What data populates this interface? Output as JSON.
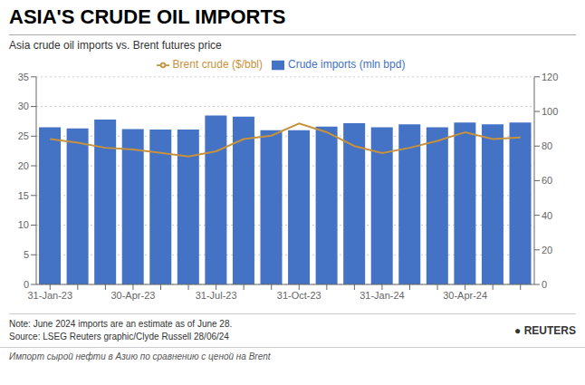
{
  "chart_data": {
    "type": "bar",
    "title": "ASIA'S CRUDE OIL IMPORTS",
    "subtitle": "Asia crude oil imports vs. Brent futures price",
    "annotations": [
      "Note: June 2024 imports are an estimate as of June 28.",
      "Source: LSEG    Reuters graphic/Clyde Russell 28/06/24",
      "● REUTERS",
      "Импорт сырой нефти в Азию по сравнению с ценой на Brent"
    ],
    "categories": [
      "31-Jan-23",
      null,
      null,
      "30-Apr-23",
      null,
      null,
      "31-Jul-23",
      null,
      null,
      "31-Oct-23",
      null,
      null,
      "31-Jan-24",
      null,
      null,
      "30-Apr-24",
      null,
      null
    ],
    "series": [
      {
        "name": "Crude imports (mln bpd)",
        "type": "bar",
        "color": "#4472C4",
        "values": [
          26.5,
          26.3,
          27.8,
          26.2,
          26.1,
          26.1,
          28.5,
          28.3,
          26.0,
          26.0,
          26.6,
          27.2,
          26.5,
          27.0,
          26.5,
          27.3,
          27.0,
          27.3
        ]
      },
      {
        "name": "Brent crude ($/bbl)",
        "type": "line",
        "axis": "y2",
        "color": "#C8923C",
        "values": [
          84,
          82,
          79,
          78,
          76,
          74,
          77,
          84,
          86,
          93,
          88,
          80,
          76,
          79,
          83,
          88,
          84,
          85
        ]
      }
    ],
    "ylim": [
      0,
      35
    ],
    "yticks": [
      0,
      5,
      10,
      15,
      20,
      25,
      30,
      35
    ],
    "y2lim": [
      0,
      120
    ],
    "y2ticks": [
      0,
      20,
      40,
      60,
      80,
      100,
      120
    ],
    "grid": true,
    "legend": "top"
  }
}
